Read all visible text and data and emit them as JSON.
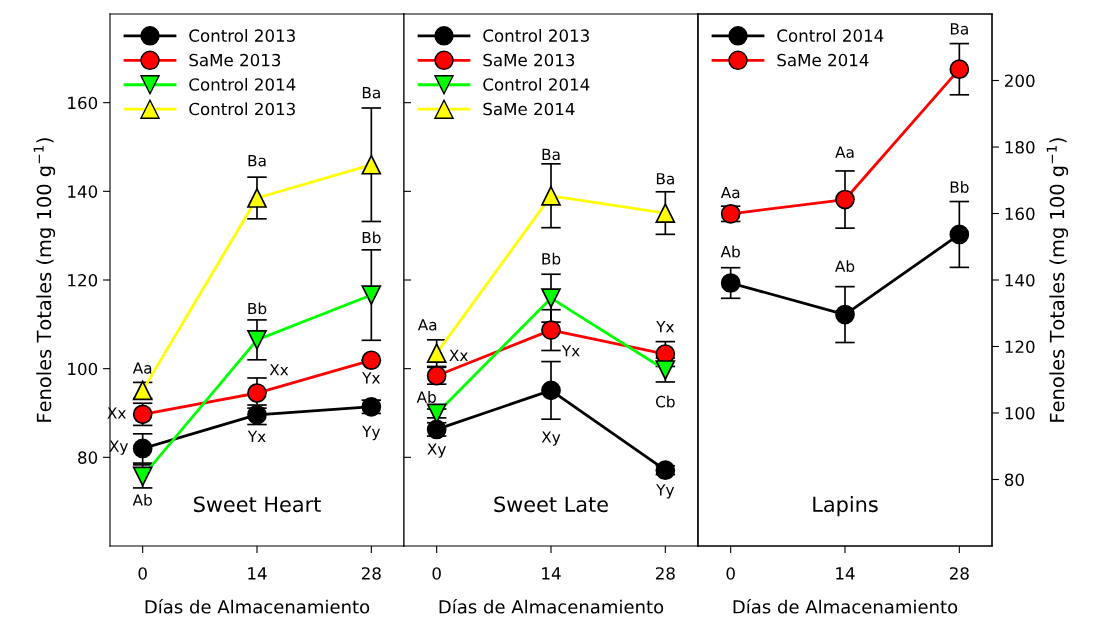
{
  "chart_data": [
    {
      "type": "line",
      "xlabel": "Días de Almacenamiento",
      "ylabel": "Fenoles Totales (mg 100 g$^{−1}$)",
      "xlim": [
        -4,
        32
      ],
      "xticks": [
        0,
        14,
        28
      ],
      "ylim": [
        60,
        180
      ],
      "yticks": [
        80,
        100,
        120,
        140,
        160
      ],
      "legend": "top left",
      "grid": false,
      "x": [
        0,
        14,
        28
      ],
      "series": [
        {
          "name": "Control 2013",
          "color": "#000000",
          "marker": "circle",
          "values": [
            82.0,
            89.6,
            91.4
          ],
          "errors": [
            3.3,
            2.2,
            1.5
          ]
        },
        {
          "name": "SaMe 2013",
          "color": "#ff0000",
          "marker": "circle",
          "values": [
            89.7,
            94.5,
            101.9
          ],
          "errors": [
            2.5,
            3.4,
            null
          ]
        },
        {
          "name": "Control 2014",
          "color": "#00ff00",
          "marker": "triangle_down",
          "values": [
            75.7,
            106.5,
            116.6
          ],
          "errors": [
            2.6,
            4.5,
            10.2
          ]
        },
        {
          "name": "Control 2013",
          "color": "#ffff00",
          "marker": "triangle",
          "values": [
            95.1,
            138.5,
            146.0
          ],
          "errors": [
            1.8,
            4.7,
            12.8
          ]
        }
      ],
      "annotations": [
        {
          "text": "Xy",
          "x": 0,
          "y": 82.0
        },
        {
          "text": "Yx",
          "x": 14,
          "y": 89.6
        },
        {
          "text": "Yy",
          "x": 28,
          "y": 91.4
        },
        {
          "text": "Xx",
          "x": 0,
          "y": 89.7
        },
        {
          "text": "Xx",
          "x": 14,
          "y": 94.5
        },
        {
          "text": "Yx",
          "x": 28,
          "y": 101.9
        },
        {
          "text": "Ab",
          "x": 0,
          "y": 75.7
        },
        {
          "text": "Bb",
          "x": 14,
          "y": 106.5
        },
        {
          "text": "Bb",
          "x": 28,
          "y": 126.8
        },
        {
          "text": "Aa",
          "x": 0,
          "y": 95.1
        },
        {
          "text": "Ba",
          "x": 14,
          "y": 138.5
        },
        {
          "text": "Ba",
          "x": 28,
          "y": 158.8
        },
        "Sweet Heart"
      ]
    },
    {
      "type": "line",
      "xlabel": "Días de Almacenamiento",
      "xlim": [
        -4,
        32
      ],
      "xticks": [
        0,
        14,
        28
      ],
      "ylim": [
        60,
        180
      ],
      "yticks": [
        80,
        100,
        120,
        140,
        160
      ],
      "tick_labels": "x",
      "legend": "top left",
      "grid": false,
      "x": [
        0,
        14,
        28
      ],
      "series": [
        {
          "name": "Control 2013",
          "color": "#000000",
          "marker": "circle",
          "values": [
            86.3,
            95.1,
            77.1
          ],
          "errors": [
            1.5,
            6.5,
            1.0
          ]
        },
        {
          "name": "SaMe 2013",
          "color": "#ff0000",
          "marker": "circle",
          "values": [
            98.4,
            108.7,
            103.3
          ],
          "errors": [
            1.9,
            4.6,
            2.8
          ]
        },
        {
          "name": "Control 2014",
          "color": "#00ff00",
          "marker": "triangle_down",
          "values": [
            89.9,
            115.9,
            99.7
          ],
          "errors": [
            1.0,
            5.4,
            2.7
          ]
        },
        {
          "name": "SaMe 2014",
          "color": "#ffff00",
          "marker": "triangle",
          "values": [
            103.5,
            139.0,
            135.1
          ],
          "errors": [
            3.0,
            7.2,
            4.8
          ]
        }
      ],
      "annotations": [
        {
          "text": "Xy",
          "x": 0,
          "y": 86.3
        },
        {
          "text": "Xy",
          "x": 14,
          "y": 95.1
        },
        {
          "text": "Yy",
          "x": 28,
          "y": 77.1
        },
        {
          "text": "Xx",
          "x": 0,
          "y": 98.4
        },
        {
          "text": "Yx",
          "x": 14,
          "y": 108.7
        },
        {
          "text": "Yx",
          "x": 28,
          "y": 103.3
        },
        {
          "text": "Ab",
          "x": 0,
          "y": 89.9
        },
        {
          "text": "Bb",
          "x": 14,
          "y": 115.9
        },
        {
          "text": "Cb",
          "x": 28,
          "y": 99.7
        },
        {
          "text": "Aa",
          "x": 0,
          "y": 103.5
        },
        {
          "text": "Ba",
          "x": 14,
          "y": 139.0
        },
        {
          "text": "Ba",
          "x": 28,
          "y": 135.1
        },
        "Sweet Late"
      ]
    },
    {
      "type": "line",
      "xlabel": "Días de Almacenamiento",
      "y2label": "Fenoles Totales (mg 100 g$^{−1}$)",
      "xlim": [
        -4,
        32
      ],
      "xticks": [
        0,
        14,
        28
      ],
      "y2lim": [
        60,
        220
      ],
      "y2ticks": [
        80,
        100,
        120,
        140,
        160,
        180,
        200
      ],
      "legend": "top left",
      "grid": false,
      "x": [
        0,
        14,
        28
      ],
      "series": [
        {
          "name": "Control 2014",
          "color": "#000000",
          "marker": "circle",
          "axis": "y2",
          "values": [
            139.1,
            129.6,
            153.7
          ],
          "errors": [
            4.6,
            8.4,
            9.9
          ]
        },
        {
          "name": "SaMe 2014",
          "color": "#ff0000",
          "marker": "circle",
          "axis": "y2",
          "values": [
            159.9,
            164.2,
            203.4
          ],
          "errors": [
            2.3,
            8.6,
            7.7
          ]
        }
      ],
      "annotations": [
        "Ab",
        "Ab",
        "Bb",
        "Aa",
        "Aa",
        "Ba",
        "Lapins"
      ]
    }
  ]
}
